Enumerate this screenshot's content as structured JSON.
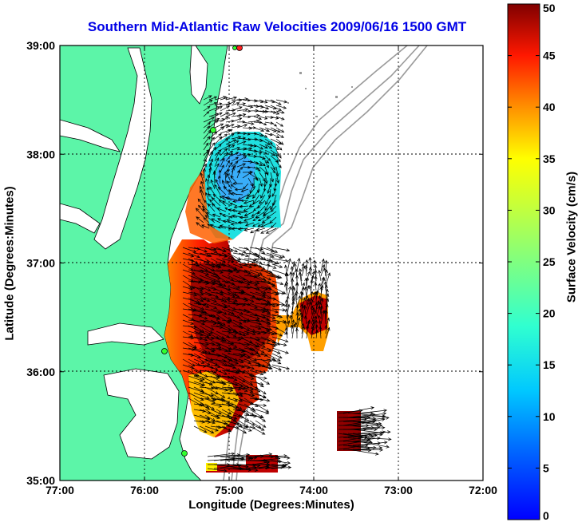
{
  "title": "Southern Mid-Atlantic Raw Velocities 2009/06/16 1500 GMT",
  "xlabel": "Longitude (Degrees:Minutes)",
  "ylabel": "Latitude (Degrees:Minutes)",
  "colorbar": {
    "label": "Surface Velocity (cm/s)",
    "min": 0,
    "max": 50,
    "ticks": [
      "0",
      "5",
      "10",
      "15",
      "20",
      "25",
      "30",
      "35",
      "40",
      "45",
      "50"
    ]
  },
  "map": {
    "xticks": [
      "77:00",
      "76:00",
      "75:00",
      "74:00",
      "73:00",
      "72:00"
    ],
    "yticks": [
      "39:00",
      "38:00",
      "37:00",
      "36:00",
      "35:00"
    ],
    "lon_range": [
      -77,
      -72
    ],
    "lat_range": [
      35,
      39
    ],
    "land_color": "#5cf5a8",
    "grid": true
  }
}
